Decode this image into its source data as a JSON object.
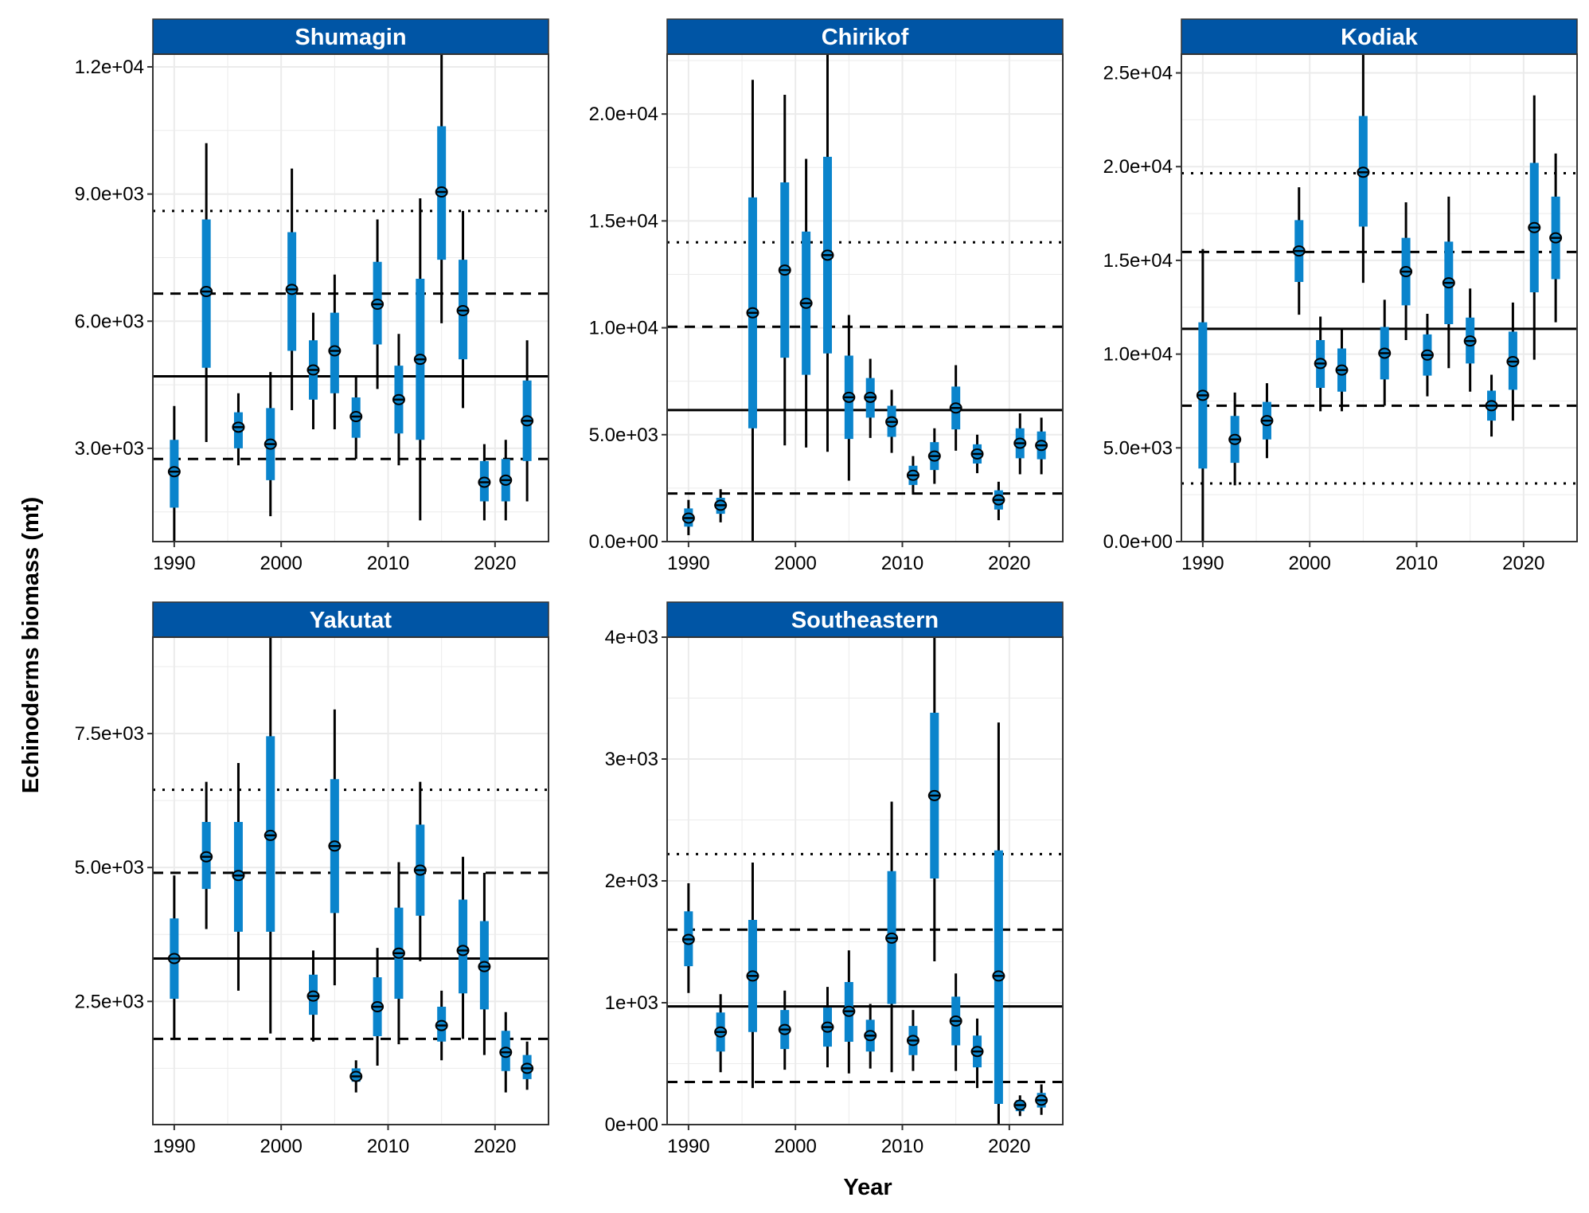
{
  "figure": {
    "xlabel": "Year",
    "ylabel": "Echinoderms biomass (mt)"
  },
  "colors": {
    "strip": "#0055a5",
    "bar": "#0a84cc",
    "whisker": "#000000",
    "grid": "#ebebeb",
    "reference_line": "#000000"
  },
  "chart_data": [
    {
      "type": "errorbar",
      "title": "Shumagin",
      "xlim": [
        1988,
        2025
      ],
      "ylim": [
        800,
        12300
      ],
      "x_ticks": [
        1990,
        2000,
        2010,
        2020
      ],
      "y_ticks": [
        3000,
        6000,
        9000,
        12000
      ],
      "y_tick_labels": [
        "3.0e+03",
        "6.0e+03",
        "9.0e+03",
        "1.2e+04"
      ],
      "reference_lines": {
        "mean": 4700,
        "sd1": [
          2750,
          6650
        ],
        "sd2": [
          null,
          8600
        ]
      },
      "points": [
        {
          "x": 1990,
          "y": 2450,
          "lo80": 1600,
          "hi80": 3200,
          "lo95": 800,
          "hi95": 4000
        },
        {
          "x": 1993,
          "y": 6700,
          "lo80": 4900,
          "hi80": 8400,
          "lo95": 3150,
          "hi95": 10200
        },
        {
          "x": 1996,
          "y": 3500,
          "lo80": 3000,
          "hi80": 3850,
          "lo95": 2600,
          "hi95": 4300
        },
        {
          "x": 1999,
          "y": 3100,
          "lo80": 2250,
          "hi80": 3950,
          "lo95": 1400,
          "hi95": 4800
        },
        {
          "x": 2001,
          "y": 6750,
          "lo80": 5300,
          "hi80": 8100,
          "lo95": 3900,
          "hi95": 9600
        },
        {
          "x": 2003,
          "y": 4850,
          "lo80": 4150,
          "hi80": 5550,
          "lo95": 3450,
          "hi95": 6200
        },
        {
          "x": 2005,
          "y": 5300,
          "lo80": 4300,
          "hi80": 6200,
          "lo95": 3450,
          "hi95": 7100
        },
        {
          "x": 2007,
          "y": 3750,
          "lo80": 3250,
          "hi80": 4200,
          "lo95": 2750,
          "hi95": 4700
        },
        {
          "x": 2009,
          "y": 6400,
          "lo80": 5450,
          "hi80": 7400,
          "lo95": 4400,
          "hi95": 8400
        },
        {
          "x": 2011,
          "y": 4150,
          "lo80": 3350,
          "hi80": 4950,
          "lo95": 2600,
          "hi95": 5700
        },
        {
          "x": 2013,
          "y": 5100,
          "lo80": 3200,
          "hi80": 7000,
          "lo95": 1300,
          "hi95": 8900
        },
        {
          "x": 2015,
          "y": 9050,
          "lo80": 7450,
          "hi80": 10600,
          "lo95": 5950,
          "hi95": 12300
        },
        {
          "x": 2017,
          "y": 6250,
          "lo80": 5100,
          "hi80": 7450,
          "lo95": 3950,
          "hi95": 8600
        },
        {
          "x": 2019,
          "y": 2200,
          "lo80": 1750,
          "hi80": 2700,
          "lo95": 1300,
          "hi95": 3100
        },
        {
          "x": 2021,
          "y": 2250,
          "lo80": 1750,
          "hi80": 2750,
          "lo95": 1300,
          "hi95": 3200
        },
        {
          "x": 2023,
          "y": 3650,
          "lo80": 2700,
          "hi80": 4600,
          "lo95": 1750,
          "hi95": 5550
        }
      ]
    },
    {
      "type": "errorbar",
      "title": "Chirikof",
      "xlim": [
        1988,
        2025
      ],
      "ylim": [
        0,
        22800
      ],
      "x_ticks": [
        1990,
        2000,
        2010,
        2020
      ],
      "y_ticks": [
        0,
        5000,
        10000,
        15000,
        20000
      ],
      "y_tick_labels": [
        "0.0e+00",
        "5.0e+03",
        "1.0e+04",
        "1.5e+04",
        "2.0e+04"
      ],
      "reference_lines": {
        "mean": 6150,
        "sd1": [
          2250,
          10050
        ],
        "sd2": [
          null,
          14000
        ]
      },
      "points": [
        {
          "x": 1990,
          "y": 1100,
          "lo80": 700,
          "hi80": 1550,
          "lo95": 300,
          "hi95": 1950
        },
        {
          "x": 1993,
          "y": 1700,
          "lo80": 1300,
          "hi80": 2050,
          "lo95": 900,
          "hi95": 2450
        },
        {
          "x": 1996,
          "y": 10700,
          "lo80": 5300,
          "hi80": 16100,
          "lo95": 0,
          "hi95": 21600
        },
        {
          "x": 1999,
          "y": 12700,
          "lo80": 8600,
          "hi80": 16800,
          "lo95": 4500,
          "hi95": 20900
        },
        {
          "x": 2001,
          "y": 11150,
          "lo80": 7800,
          "hi80": 14500,
          "lo95": 4400,
          "hi95": 17900
        },
        {
          "x": 2003,
          "y": 13400,
          "lo80": 8800,
          "hi80": 18000,
          "lo95": 4200,
          "hi95": 22800
        },
        {
          "x": 2005,
          "y": 6750,
          "lo80": 4800,
          "hi80": 8700,
          "lo95": 2850,
          "hi95": 10600
        },
        {
          "x": 2007,
          "y": 6750,
          "lo80": 5800,
          "hi80": 7650,
          "lo95": 4850,
          "hi95": 8550
        },
        {
          "x": 2009,
          "y": 5600,
          "lo80": 4900,
          "hi80": 6350,
          "lo95": 4150,
          "hi95": 7100
        },
        {
          "x": 2011,
          "y": 3100,
          "lo80": 2650,
          "hi80": 3550,
          "lo95": 2200,
          "hi95": 4000
        },
        {
          "x": 2013,
          "y": 4000,
          "lo80": 3350,
          "hi80": 4650,
          "lo95": 2700,
          "hi95": 5300
        },
        {
          "x": 2015,
          "y": 6250,
          "lo80": 5250,
          "hi80": 7250,
          "lo95": 4250,
          "hi95": 8250
        },
        {
          "x": 2017,
          "y": 4100,
          "lo80": 3650,
          "hi80": 4550,
          "lo95": 3200,
          "hi95": 5000
        },
        {
          "x": 2019,
          "y": 1950,
          "lo80": 1500,
          "hi80": 2400,
          "lo95": 1000,
          "hi95": 2800
        },
        {
          "x": 2021,
          "y": 4600,
          "lo80": 3900,
          "hi80": 5300,
          "lo95": 3150,
          "hi95": 6000
        },
        {
          "x": 2023,
          "y": 4500,
          "lo80": 3850,
          "hi80": 5150,
          "lo95": 3150,
          "hi95": 5800
        }
      ]
    },
    {
      "type": "errorbar",
      "title": "Kodiak",
      "xlim": [
        1988,
        2025
      ],
      "ylim": [
        0,
        26000
      ],
      "x_ticks": [
        1990,
        2000,
        2010,
        2020
      ],
      "y_ticks": [
        0,
        5000,
        10000,
        15000,
        20000,
        25000
      ],
      "y_tick_labels": [
        "0.0e+00",
        "5.0e+03",
        "1.0e+04",
        "1.5e+04",
        "2.0e+04",
        "2.5e+04"
      ],
      "reference_lines": {
        "mean": 11350,
        "sd1": [
          7250,
          15450
        ],
        "sd2": [
          3100,
          19650
        ]
      },
      "points": [
        {
          "x": 1990,
          "y": 7800,
          "lo80": 3900,
          "hi80": 11700,
          "lo95": 0,
          "hi95": 15600
        },
        {
          "x": 1993,
          "y": 5450,
          "lo80": 4200,
          "hi80": 6700,
          "lo95": 3000,
          "hi95": 7950
        },
        {
          "x": 1996,
          "y": 6450,
          "lo80": 5450,
          "hi80": 7450,
          "lo95": 4450,
          "hi95": 8450
        },
        {
          "x": 1999,
          "y": 15500,
          "lo80": 13850,
          "hi80": 17150,
          "lo95": 12100,
          "hi95": 18900
        },
        {
          "x": 2001,
          "y": 9500,
          "lo80": 8200,
          "hi80": 10750,
          "lo95": 6950,
          "hi95": 12000
        },
        {
          "x": 2003,
          "y": 9150,
          "lo80": 8000,
          "hi80": 10300,
          "lo95": 6950,
          "hi95": 11350
        },
        {
          "x": 2005,
          "y": 19700,
          "lo80": 16800,
          "hi80": 22700,
          "lo95": 13800,
          "hi95": 26000
        },
        {
          "x": 2007,
          "y": 10050,
          "lo80": 8650,
          "hi80": 11450,
          "lo95": 7250,
          "hi95": 12900
        },
        {
          "x": 2009,
          "y": 14400,
          "lo80": 12600,
          "hi80": 16200,
          "lo95": 10750,
          "hi95": 18100
        },
        {
          "x": 2011,
          "y": 9950,
          "lo80": 8850,
          "hi80": 11050,
          "lo95": 7750,
          "hi95": 12150
        },
        {
          "x": 2013,
          "y": 13800,
          "lo80": 11600,
          "hi80": 16000,
          "lo95": 9250,
          "hi95": 18400
        },
        {
          "x": 2015,
          "y": 10700,
          "lo80": 9500,
          "hi80": 11950,
          "lo95": 8000,
          "hi95": 13500
        },
        {
          "x": 2017,
          "y": 7250,
          "lo80": 6450,
          "hi80": 8050,
          "lo95": 5600,
          "hi95": 8900
        },
        {
          "x": 2019,
          "y": 9600,
          "lo80": 8100,
          "hi80": 11200,
          "lo95": 6450,
          "hi95": 12750
        },
        {
          "x": 2021,
          "y": 16750,
          "lo80": 13300,
          "hi80": 20200,
          "lo95": 9700,
          "hi95": 23800
        },
        {
          "x": 2023,
          "y": 16200,
          "lo80": 14000,
          "hi80": 18400,
          "lo95": 11700,
          "hi95": 20700
        }
      ]
    },
    {
      "type": "errorbar",
      "title": "Yakutat",
      "xlim": [
        1988,
        2025
      ],
      "ylim": [
        200,
        9300
      ],
      "x_ticks": [
        1990,
        2000,
        2010,
        2020
      ],
      "y_ticks": [
        2500,
        5000,
        7500
      ],
      "y_tick_labels": [
        "2.5e+03",
        "5.0e+03",
        "7.5e+03"
      ],
      "reference_lines": {
        "mean": 3300,
        "sd1": [
          1800,
          4900
        ],
        "sd2": [
          null,
          6450
        ]
      },
      "points": [
        {
          "x": 1990,
          "y": 3300,
          "lo80": 2550,
          "hi80": 4050,
          "lo95": 1800,
          "hi95": 4850
        },
        {
          "x": 1993,
          "y": 5200,
          "lo80": 4600,
          "hi80": 5850,
          "lo95": 3850,
          "hi95": 6600
        },
        {
          "x": 1996,
          "y": 4850,
          "lo80": 3800,
          "hi80": 5850,
          "lo95": 2700,
          "hi95": 6950
        },
        {
          "x": 1999,
          "y": 5600,
          "lo80": 3800,
          "hi80": 7450,
          "lo95": 1900,
          "hi95": 9300
        },
        {
          "x": 2003,
          "y": 2600,
          "lo80": 2250,
          "hi80": 3000,
          "lo95": 1750,
          "hi95": 3450
        },
        {
          "x": 2005,
          "y": 5400,
          "lo80": 4150,
          "hi80": 6650,
          "lo95": 2800,
          "hi95": 7950
        },
        {
          "x": 2007,
          "y": 1100,
          "lo80": 1000,
          "hi80": 1250,
          "lo95": 800,
          "hi95": 1400
        },
        {
          "x": 2009,
          "y": 2400,
          "lo80": 1850,
          "hi80": 2950,
          "lo95": 1300,
          "hi95": 3500
        },
        {
          "x": 2011,
          "y": 3400,
          "lo80": 2550,
          "hi80": 4250,
          "lo95": 1700,
          "hi95": 5100
        },
        {
          "x": 2013,
          "y": 4950,
          "lo80": 4100,
          "hi80": 5800,
          "lo95": 3250,
          "hi95": 6600
        },
        {
          "x": 2015,
          "y": 2050,
          "lo80": 1750,
          "hi80": 2400,
          "lo95": 1400,
          "hi95": 2700
        },
        {
          "x": 2017,
          "y": 3450,
          "lo80": 2650,
          "hi80": 4400,
          "lo95": 1800,
          "hi95": 5200
        },
        {
          "x": 2019,
          "y": 3150,
          "lo80": 2350,
          "hi80": 4000,
          "lo95": 1500,
          "hi95": 4900
        },
        {
          "x": 2021,
          "y": 1550,
          "lo80": 1200,
          "hi80": 1950,
          "lo95": 800,
          "hi95": 2300
        },
        {
          "x": 2023,
          "y": 1250,
          "lo80": 1050,
          "hi80": 1500,
          "lo95": 850,
          "hi95": 1750
        }
      ]
    },
    {
      "type": "errorbar",
      "title": "Southeastern",
      "xlim": [
        1988,
        2025
      ],
      "ylim": [
        0,
        4000
      ],
      "x_ticks": [
        1990,
        2000,
        2010,
        2020
      ],
      "y_ticks": [
        0,
        1000,
        2000,
        3000,
        4000
      ],
      "y_tick_labels": [
        "0e+00",
        "1e+03",
        "2e+03",
        "3e+03",
        "4e+03"
      ],
      "reference_lines": {
        "mean": 970,
        "sd1": [
          350,
          1600
        ],
        "sd2": [
          null,
          2220
        ]
      },
      "points": [
        {
          "x": 1990,
          "y": 1520,
          "lo80": 1300,
          "hi80": 1750,
          "lo95": 1080,
          "hi95": 1980
        },
        {
          "x": 1993,
          "y": 760,
          "lo80": 600,
          "hi80": 920,
          "lo95": 430,
          "hi95": 1070
        },
        {
          "x": 1996,
          "y": 1220,
          "lo80": 760,
          "hi80": 1680,
          "lo95": 300,
          "hi95": 2150
        },
        {
          "x": 1999,
          "y": 780,
          "lo80": 620,
          "hi80": 940,
          "lo95": 450,
          "hi95": 1100
        },
        {
          "x": 2003,
          "y": 800,
          "lo80": 640,
          "hi80": 960,
          "lo95": 470,
          "hi95": 1130
        },
        {
          "x": 2005,
          "y": 930,
          "lo80": 680,
          "hi80": 1170,
          "lo95": 420,
          "hi95": 1430
        },
        {
          "x": 2007,
          "y": 730,
          "lo80": 600,
          "hi80": 860,
          "lo95": 460,
          "hi95": 990
        },
        {
          "x": 2009,
          "y": 1530,
          "lo80": 990,
          "hi80": 2080,
          "lo95": 430,
          "hi95": 2650
        },
        {
          "x": 2011,
          "y": 690,
          "lo80": 570,
          "hi80": 810,
          "lo95": 440,
          "hi95": 940
        },
        {
          "x": 2013,
          "y": 2700,
          "lo80": 2020,
          "hi80": 3380,
          "lo95": 1340,
          "hi95": 4000
        },
        {
          "x": 2015,
          "y": 850,
          "lo80": 650,
          "hi80": 1050,
          "lo95": 440,
          "hi95": 1240
        },
        {
          "x": 2017,
          "y": 600,
          "lo80": 470,
          "hi80": 730,
          "lo95": 300,
          "hi95": 870
        },
        {
          "x": 2019,
          "y": 1220,
          "lo80": 170,
          "hi80": 2250,
          "lo95": 0,
          "hi95": 3300
        },
        {
          "x": 2021,
          "y": 160,
          "lo80": 110,
          "hi80": 200,
          "lo95": 70,
          "hi95": 240
        },
        {
          "x": 2023,
          "y": 200,
          "lo80": 140,
          "hi80": 260,
          "lo95": 80,
          "hi95": 330
        }
      ]
    }
  ]
}
